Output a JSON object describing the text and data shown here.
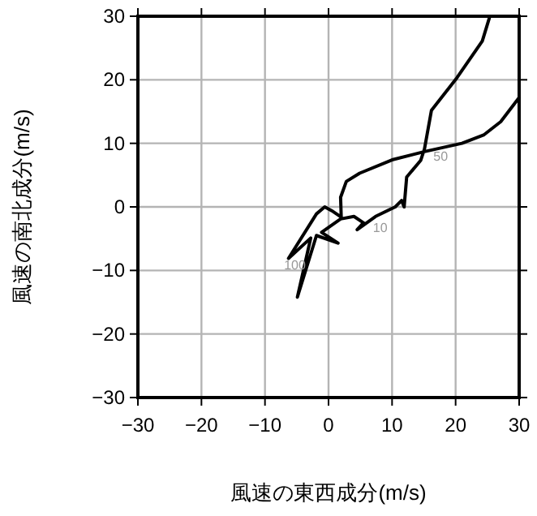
{
  "chart_data": {
    "type": "line",
    "xlabel": "風速の東西成分(m/s)",
    "ylabel": "風速の南北成分(m/s)",
    "xlim": [
      -30,
      30
    ],
    "ylim": [
      -30,
      30
    ],
    "xticks": [
      -30,
      -20,
      -10,
      0,
      10,
      20,
      30
    ],
    "yticks": [
      -30,
      -20,
      -10,
      0,
      10,
      20,
      30
    ],
    "grid": true,
    "marker": "none",
    "series": [
      {
        "color": "#000000",
        "x": [
          25.3,
          24.2,
          20.2,
          16.2,
          15.1,
          14.5,
          12.3,
          11.9,
          11.5,
          10.5,
          7.4,
          4.5,
          5.5,
          4.0,
          1.9,
          -1.1,
          1.5,
          -1.9,
          -4.9,
          -2.8,
          -6.3,
          -1.9,
          -0.6,
          0.5,
          2.0,
          1.9,
          2.8,
          4.9,
          10,
          15.1,
          21,
          24.4,
          27.1,
          30
        ],
        "values": [
          29.7,
          26.1,
          20.3,
          15.2,
          9.1,
          7.3,
          4.7,
          0,
          1.0,
          0,
          -1.5,
          -3.6,
          -2.5,
          -1.5,
          -1.9,
          -4.0,
          -5.7,
          -4.5,
          -14.2,
          -4.9,
          -8.1,
          -1.1,
          0,
          -0.6,
          -1.6,
          1.5,
          4.0,
          5.3,
          7.4,
          8.7,
          10,
          11.3,
          13.4,
          17.2
        ]
      }
    ],
    "annotations": [
      {
        "text": "50",
        "x": 16.5,
        "y": 8
      },
      {
        "text": "10",
        "x": 7.0,
        "y": -3.2
      },
      {
        "text": "100",
        "x": -7.0,
        "y": -9
      }
    ]
  }
}
